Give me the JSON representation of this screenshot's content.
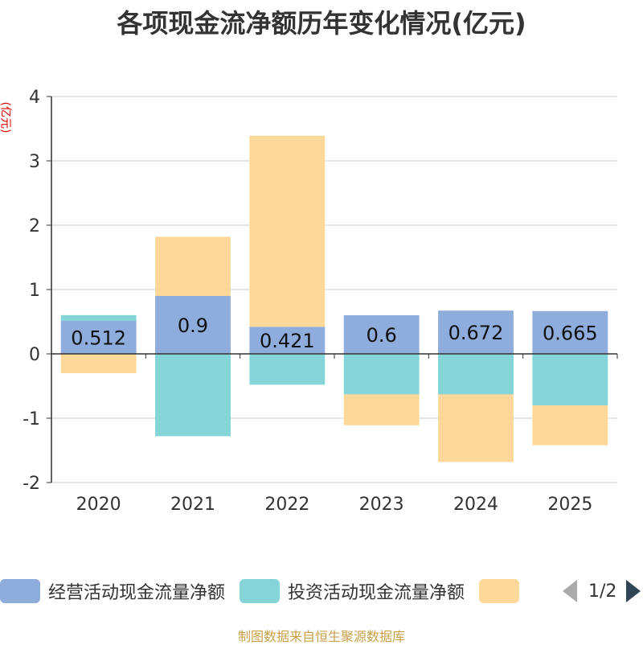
{
  "chart_data": {
    "type": "bar",
    "stacked": true,
    "title": "各项现金流净额历年变化情况(亿元)",
    "ylabel": "(亿元)",
    "ylim": [
      -2,
      4
    ],
    "yticks": [
      -2,
      -1,
      0,
      1,
      2,
      3,
      4
    ],
    "categories": [
      "2020",
      "2021",
      "2022",
      "2023",
      "2024",
      "2025"
    ],
    "series": [
      {
        "name": "经营活动现金流量净额",
        "color": "#8eacdc",
        "values": [
          0.512,
          0.9,
          0.421,
          0.6,
          0.672,
          0.665
        ],
        "labels": [
          "0.512",
          "0.9",
          "0.421",
          "0.6",
          "0.672",
          "0.665"
        ]
      },
      {
        "name": "投资活动现金流量净额",
        "color": "#85d4d8",
        "values": [
          0.09,
          -1.28,
          -0.48,
          -0.63,
          -0.63,
          -0.8
        ]
      },
      {
        "name": "",
        "color": "#fdd898",
        "values": [
          -0.3,
          0.92,
          2.97,
          -0.48,
          -1.05,
          -0.62
        ]
      }
    ]
  },
  "legend": {
    "items": [
      {
        "label": "经营活动现金流量净额",
        "color": "#8eacdc"
      },
      {
        "label": "投资活动现金流量净额",
        "color": "#85d4d8"
      },
      {
        "label": "",
        "color": "#fdd898"
      }
    ],
    "page_text": "1/2"
  },
  "source": "制图数据来自恒生聚源数据库"
}
